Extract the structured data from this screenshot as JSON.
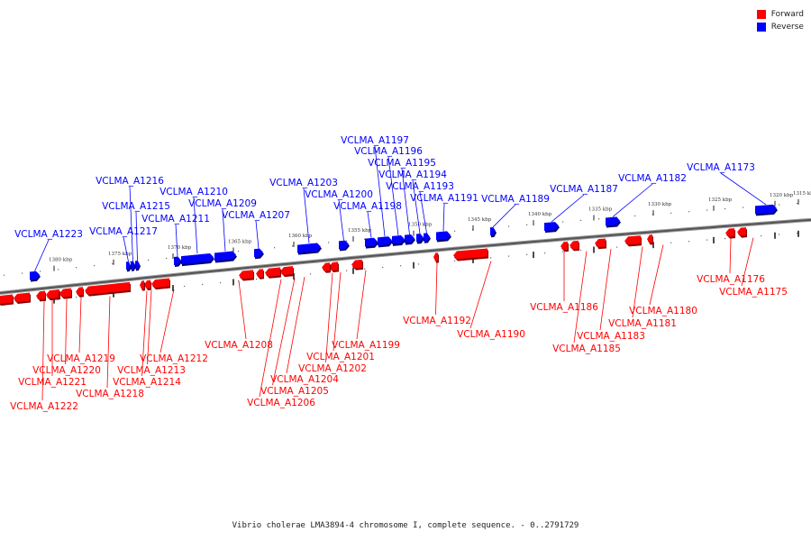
{
  "legend": {
    "forward_label": "Forward",
    "reverse_label": "Reverse",
    "forward_color": "#ff0000",
    "reverse_color": "#0000ff"
  },
  "caption": "Vibrio cholerae LMA3894-4 chromosome I, complete sequence. - 0..2791729",
  "axis_ticks": [
    {
      "label": "1380 kbp"
    },
    {
      "label": "1375 kbp"
    },
    {
      "label": "1370 kbp"
    },
    {
      "label": "1365 kbp"
    },
    {
      "label": "1360 kbp"
    },
    {
      "label": "1355 kbp"
    },
    {
      "label": "1350 kbp"
    },
    {
      "label": "1345 kbp"
    },
    {
      "label": "1340 kbp"
    },
    {
      "label": "1335 kbp"
    },
    {
      "label": "1330 kbp"
    },
    {
      "label": "1325 kbp"
    },
    {
      "label": "1320 kbp"
    },
    {
      "label": "1315 kbp"
    }
  ],
  "genes": [
    {
      "label": "VCLMA_A1173",
      "strand": "reverse"
    },
    {
      "label": "VCLMA_A1175",
      "strand": "forward"
    },
    {
      "label": "VCLMA_A1176",
      "strand": "forward"
    },
    {
      "label": "VCLMA_A1180",
      "strand": "forward"
    },
    {
      "label": "VCLMA_A1181",
      "strand": "forward"
    },
    {
      "label": "VCLMA_A1182",
      "strand": "reverse"
    },
    {
      "label": "VCLMA_A1183",
      "strand": "forward"
    },
    {
      "label": "VCLMA_A1185",
      "strand": "forward"
    },
    {
      "label": "VCLMA_A1186",
      "strand": "forward"
    },
    {
      "label": "VCLMA_A1187",
      "strand": "reverse"
    },
    {
      "label": "VCLMA_A1189",
      "strand": "reverse"
    },
    {
      "label": "VCLMA_A1190",
      "strand": "forward"
    },
    {
      "label": "VCLMA_A1191",
      "strand": "reverse"
    },
    {
      "label": "VCLMA_A1192",
      "strand": "forward"
    },
    {
      "label": "VCLMA_A1193",
      "strand": "reverse"
    },
    {
      "label": "VCLMA_A1194",
      "strand": "reverse"
    },
    {
      "label": "VCLMA_A1195",
      "strand": "reverse"
    },
    {
      "label": "VCLMA_A1196",
      "strand": "reverse"
    },
    {
      "label": "VCLMA_A1197",
      "strand": "reverse"
    },
    {
      "label": "VCLMA_A1198",
      "strand": "reverse"
    },
    {
      "label": "VCLMA_A1199",
      "strand": "forward"
    },
    {
      "label": "VCLMA_A1200",
      "strand": "reverse"
    },
    {
      "label": "VCLMA_A1201",
      "strand": "forward"
    },
    {
      "label": "VCLMA_A1202",
      "strand": "forward"
    },
    {
      "label": "VCLMA_A1203",
      "strand": "reverse"
    },
    {
      "label": "VCLMA_A1204",
      "strand": "forward"
    },
    {
      "label": "VCLMA_A1205",
      "strand": "forward"
    },
    {
      "label": "VCLMA_A1206",
      "strand": "forward"
    },
    {
      "label": "VCLMA_A1207",
      "strand": "reverse"
    },
    {
      "label": "VCLMA_A1208",
      "strand": "forward"
    },
    {
      "label": "VCLMA_A1209",
      "strand": "reverse"
    },
    {
      "label": "VCLMA_A1210",
      "strand": "reverse"
    },
    {
      "label": "VCLMA_A1211",
      "strand": "reverse"
    },
    {
      "label": "VCLMA_A1212",
      "strand": "forward"
    },
    {
      "label": "VCLMA_A1213",
      "strand": "forward"
    },
    {
      "label": "VCLMA_A1214",
      "strand": "forward"
    },
    {
      "label": "VCLMA_A1215",
      "strand": "reverse"
    },
    {
      "label": "VCLMA_A1216",
      "strand": "reverse"
    },
    {
      "label": "VCLMA_A1217",
      "strand": "reverse"
    },
    {
      "label": "VCLMA_A1218",
      "strand": "forward"
    },
    {
      "label": "VCLMA_A1219",
      "strand": "forward"
    },
    {
      "label": "VCLMA_A1220",
      "strand": "forward"
    },
    {
      "label": "VCLMA_A1221",
      "strand": "forward"
    },
    {
      "label": "VCLMA_A1222",
      "strand": "forward"
    },
    {
      "label": "VCLMA_A1223",
      "strand": "reverse"
    }
  ]
}
